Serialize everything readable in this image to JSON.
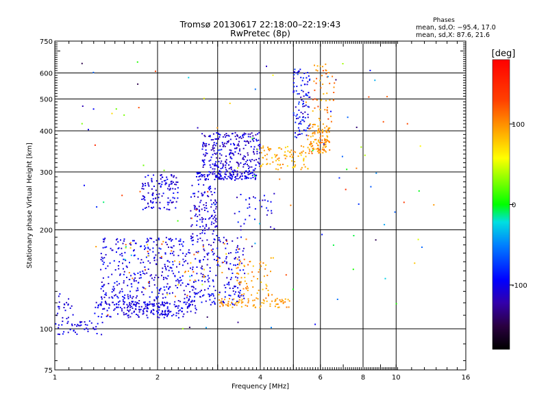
{
  "chart_data": {
    "type": "scatter",
    "title": "Tromsø 20130617 22:18:00–22:19:43",
    "subtitle": "RwPretec (8p)",
    "xlabel": "Frequency [MHz]",
    "ylabel": "Stationary phase Virtual Height [km]",
    "x_scale": "log",
    "y_scale": "log",
    "xlim": [
      1,
      16
    ],
    "ylim": [
      75,
      750
    ],
    "x_ticks": [
      1,
      2,
      4,
      6,
      8,
      10,
      16
    ],
    "y_ticks": [
      75,
      100,
      200,
      300,
      400,
      500,
      600,
      750
    ],
    "grid": true,
    "stats": {
      "heading": "Phases",
      "line_o": "mean, sd,O: −95.4, 17.0",
      "line_x": "mean, sd,X:  87.6, 21.6"
    },
    "colorbar": {
      "label": "[deg]",
      "range": [
        -180,
        180
      ],
      "ticks": [
        100,
        0,
        -100
      ]
    },
    "point_clusters": [
      {
        "x": [
          1.0,
          1.38
        ],
        "y": [
          96,
          106
        ],
        "n": 45,
        "phase": [
          -115,
          -90
        ]
      },
      {
        "x": [
          1.0,
          1.14
        ],
        "y": [
          104,
          128
        ],
        "n": 25,
        "phase": [
          -115,
          -95
        ]
      },
      {
        "x": [
          1.3,
          2.6
        ],
        "y": [
          108,
          122
        ],
        "n": 160,
        "phase": [
          -115,
          -90
        ]
      },
      {
        "x": [
          1.35,
          3.6
        ],
        "y": [
          118,
          190
        ],
        "n": 560,
        "phase": [
          -120,
          -85
        ]
      },
      {
        "x": [
          1.6,
          2.4
        ],
        "y": [
          110,
          120
        ],
        "n": 60,
        "phase": [
          -115,
          -95
        ]
      },
      {
        "x": [
          3.0,
          4.9
        ],
        "y": [
          116,
          124
        ],
        "n": 80,
        "phase": [
          85,
          110
        ]
      },
      {
        "x": [
          3.4,
          4.4
        ],
        "y": [
          122,
          165
        ],
        "n": 60,
        "phase": [
          75,
          120
        ]
      },
      {
        "x": [
          2.5,
          3.0
        ],
        "y": [
          190,
          275
        ],
        "n": 110,
        "phase": [
          -120,
          -90
        ]
      },
      {
        "x": [
          1.6,
          3.6
        ],
        "y": [
          125,
          185
        ],
        "n": 50,
        "phase": [
          60,
          140
        ]
      },
      {
        "x": [
          1.8,
          2.3
        ],
        "y": [
          230,
          295
        ],
        "n": 120,
        "phase": [
          -120,
          -90
        ]
      },
      {
        "x": [
          2.6,
          3.9
        ],
        "y": [
          283,
          300
        ],
        "n": 120,
        "phase": [
          -115,
          -95
        ]
      },
      {
        "x": [
          2.7,
          4.0
        ],
        "y": [
          300,
          395
        ],
        "n": 260,
        "phase": [
          -125,
          -90
        ]
      },
      {
        "x": [
          3.3,
          4.6
        ],
        "y": [
          200,
          260
        ],
        "n": 35,
        "phase": [
          -120,
          -80
        ]
      },
      {
        "x": [
          4.0,
          5.6
        ],
        "y": [
          305,
          360
        ],
        "n": 90,
        "phase": [
          70,
          110
        ]
      },
      {
        "x": [
          5.0,
          5.6
        ],
        "y": [
          380,
          620
        ],
        "n": 100,
        "phase": [
          -120,
          -70
        ]
      },
      {
        "x": [
          5.5,
          6.4
        ],
        "y": [
          340,
          420
        ],
        "n": 110,
        "phase": [
          80,
          120
        ]
      },
      {
        "x": [
          5.7,
          6.6
        ],
        "y": [
          420,
          640
        ],
        "n": 50,
        "phase": [
          80,
          140
        ]
      },
      {
        "x": [
          1.2,
          10.0
        ],
        "y": [
          100,
          650
        ],
        "n": 90,
        "phase": [
          -150,
          150
        ]
      },
      {
        "x": [
          6.0,
          13.0
        ],
        "y": [
          110,
          500
        ],
        "n": 20,
        "phase": [
          -150,
          150
        ]
      }
    ]
  }
}
